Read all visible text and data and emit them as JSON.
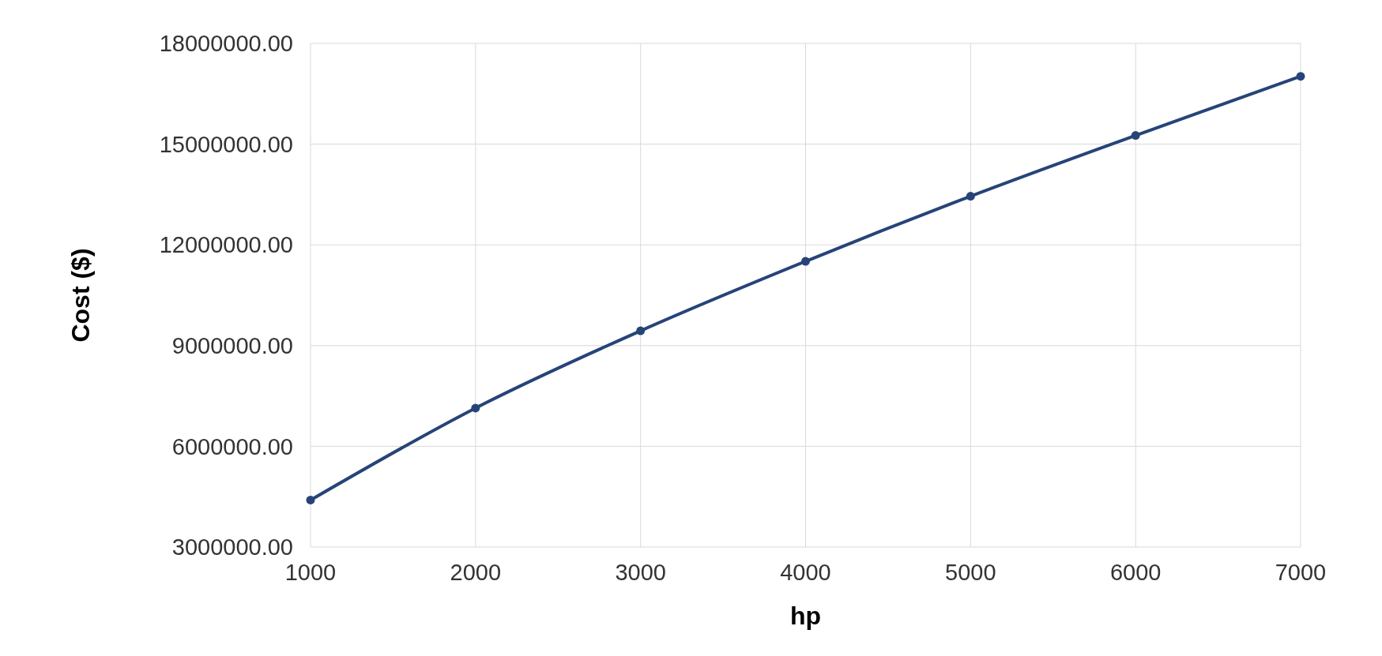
{
  "chart_data": {
    "type": "line",
    "xlabel": "hp",
    "ylabel": "Cost ($)",
    "x": [
      1000,
      2000,
      3000,
      4000,
      5000,
      6000,
      7000
    ],
    "series": [
      {
        "color": "#264478",
        "values": [
          4400000,
          7140000,
          9440000,
          11510000,
          13450000,
          15260000,
          17020000
        ]
      }
    ],
    "xlim": [
      1000,
      7000
    ],
    "xticks": [
      1000,
      2000,
      3000,
      4000,
      5000,
      6000,
      7000
    ],
    "ylim": [
      3000000,
      18000000
    ],
    "yticks": [
      {
        "value": 3000000,
        "label": "3000000.00"
      },
      {
        "value": 6000000,
        "label": "6000000.00"
      },
      {
        "value": 9000000,
        "label": "9000000.00"
      },
      {
        "value": 12000000,
        "label": "12000000.00"
      },
      {
        "value": 15000000,
        "label": "15000000.00"
      },
      {
        "value": 18000000,
        "label": "18000000.00"
      }
    ],
    "grid": true,
    "marker": "circle",
    "line_style": "solid"
  }
}
